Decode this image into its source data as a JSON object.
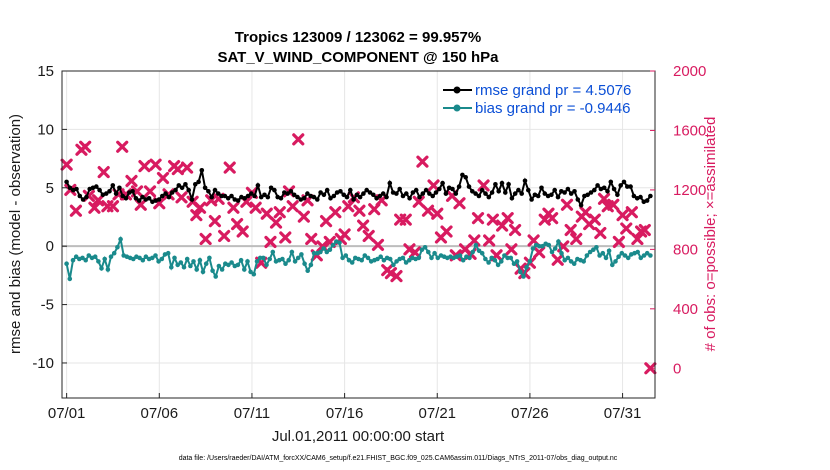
{
  "chart_data": {
    "type": "line",
    "title": [
      "Tropics 123009 / 123062 = 99.957%",
      "SAT_V_WIND_COMPONENT @ 150 hPa"
    ],
    "xlabel": "Jul.01,2011 00:00:00 start",
    "ylabel": "rmse and bias (model - observation)",
    "ylabel_right": "# of obs: o=possible; ×=assimilated",
    "x_tick_labels": [
      "07/01",
      "07/06",
      "07/11",
      "07/16",
      "07/21",
      "07/26",
      "07/31"
    ],
    "x_tick_days": [
      0,
      5,
      10,
      15,
      20,
      25,
      30
    ],
    "xlim": [
      -0.25,
      31.75
    ],
    "ylim": [
      -13,
      15
    ],
    "y_ticks": [
      -10,
      -5,
      0,
      5,
      10,
      15
    ],
    "ylim_right": [
      -200,
      2000
    ],
    "y_ticks_right": [
      0,
      400,
      800,
      1200,
      1600,
      2000
    ],
    "grid": true,
    "zero_line": true,
    "legend_position": "top-right",
    "series": [
      {
        "name": "rmse grand pr = 4.5076",
        "axis": "left",
        "color": "#000000",
        "values": [
          5.5,
          5.0,
          4.8,
          4.9,
          4.3,
          4.0,
          4.2,
          4.9,
          5.0,
          5.1,
          4.8,
          4.4,
          4.5,
          4.7,
          5.2,
          4.5,
          5.0,
          4.3,
          4.1,
          4.6,
          4.7,
          4.1,
          3.9,
          4.2,
          4.0,
          4.1,
          3.8,
          3.9,
          4.0,
          4.3,
          4.5,
          4.2,
          4.6,
          4.8,
          5.2,
          5.0,
          5.3,
          4.8,
          4.0,
          5.3,
          5.5,
          6.5,
          5.0,
          4.7,
          4.2,
          4.8,
          4.5,
          4.3,
          4.3,
          4.1,
          4.3,
          4.0,
          3.9,
          4.2,
          4.1,
          4.3,
          4.5,
          4.3,
          5.2,
          4.2,
          4.4,
          4.2,
          5.0,
          4.8,
          4.2,
          4.1,
          4.6,
          4.5,
          4.7,
          4.4,
          4.2,
          4.0,
          4.1,
          4.5,
          4.3,
          4.2,
          4.0,
          4.6,
          4.4,
          4.8,
          4.1,
          4.3,
          4.6,
          4.7,
          4.4,
          4.2,
          4.8,
          4.0,
          4.4,
          4.2,
          4.5,
          4.8,
          4.6,
          4.4,
          4.1,
          4.3,
          4.5,
          4.2,
          5.4,
          4.6,
          4.5,
          4.9,
          4.3,
          4.5,
          4.1,
          4.6,
          4.8,
          4.2,
          4.5,
          4.8,
          4.5,
          4.3,
          4.6,
          4.9,
          5.4,
          4.5,
          5.0,
          4.9,
          4.5,
          5.1,
          6.1,
          5.9,
          5.1,
          4.7,
          4.5,
          4.3,
          4.8,
          4.5,
          4.2,
          4.6,
          5.3,
          4.7,
          5.4,
          4.6,
          5.3,
          4.1,
          4.5,
          4.8,
          4.5,
          5.6,
          4.8,
          4.0,
          4.4,
          4.3,
          5.0,
          4.5,
          4.3,
          4.4,
          4.8,
          4.2,
          4.7,
          4.6,
          4.9,
          4.5,
          4.7,
          4.0,
          3.5,
          4.3,
          4.4,
          4.6,
          4.8,
          5.2,
          4.9,
          5.0,
          4.7,
          5.5,
          4.9,
          4.4,
          5.2,
          5.5,
          5.1,
          5.1,
          4.3,
          4.1,
          4.2,
          3.8,
          3.9,
          4.3
        ]
      },
      {
        "name": "bias grand pr = -0.9446",
        "axis": "left",
        "color": "#1a8a8c",
        "values": [
          -1.5,
          -2.8,
          -1.2,
          -0.9,
          -1.1,
          -1.0,
          -1.2,
          -0.8,
          -1.0,
          -0.9,
          -1.3,
          -1.9,
          -1.1,
          -2.0,
          -0.9,
          -0.6,
          -0.1,
          0.6,
          -0.8,
          -0.9,
          -1.0,
          -1.1,
          -0.9,
          -1.0,
          -1.2,
          -0.9,
          -1.1,
          -1.0,
          -0.8,
          -1.3,
          -1.1,
          -0.7,
          -0.6,
          -1.8,
          -1.0,
          -1.6,
          -1.4,
          -1.8,
          -1.1,
          -1.7,
          -1.3,
          -2.0,
          -1.2,
          -2.2,
          -1.5,
          -1.0,
          -2.1,
          -2.6,
          -1.7,
          -2.0,
          -1.5,
          -1.6,
          -1.4,
          -1.7,
          -1.6,
          -1.2,
          -2.0,
          -1.3,
          -2.2,
          -2.4,
          -1.3,
          -1.0,
          -1.0,
          -1.6,
          -1.1,
          -0.5,
          -1.3,
          -1.2,
          -1.1,
          -1.5,
          -1.2,
          -0.5,
          -1.3,
          -1.0,
          -0.7,
          -1.5,
          -2.1,
          -1.6,
          -0.6,
          -0.6,
          -0.5,
          -0.2,
          -0.5,
          -0.3,
          0.1,
          0.4,
          0.3,
          -1.0,
          -0.8,
          -1.2,
          -1.4,
          -1.0,
          -1.1,
          -1.2,
          -0.8,
          -1.0,
          -1.3,
          -1.2,
          -1.1,
          -0.9,
          -1.2,
          -1.0,
          -1.1,
          -1.6,
          -1.3,
          -1.1,
          -1.0,
          -1.4,
          -1.2,
          -1.0,
          -1.1,
          -1.0,
          -0.3,
          -0.1,
          -0.5,
          -1.0,
          -0.6,
          -1.0,
          -0.8,
          -0.9,
          -1.0,
          -0.9,
          -1.0,
          -0.9,
          -0.8,
          -1.2,
          -0.9,
          -1.0,
          -0.5,
          0.1,
          -0.4,
          -0.6,
          -1.1,
          -1.4,
          -1.0,
          -1.2,
          -1.6,
          -1.3,
          -0.8,
          -1.0,
          -1.0,
          -1.5,
          -1.3,
          -2.2,
          -2.6,
          -1.8,
          -1.3,
          -0.2,
          0.1,
          0.0,
          0.0,
          0.2,
          0.1,
          -0.5,
          -0.2,
          0.4,
          -0.6,
          -1.2,
          -1.0,
          -1.3,
          -1.5,
          -1.1,
          -1.2,
          -1.3,
          -0.8,
          -0.5,
          -0.3,
          -0.1,
          -0.8,
          -0.6,
          -1.0,
          -0.4,
          -1.6,
          -1.3,
          -0.9,
          -0.6,
          -0.8,
          -1.0,
          -0.7,
          -0.6,
          -0.5,
          -1.0,
          -0.8,
          -0.6,
          -0.8
        ]
      },
      {
        "name": "# of obs assimilated",
        "axis": "right",
        "marker": "x",
        "color": "#d81b60",
        "points": [
          [
            0.0,
            1370
          ],
          [
            0.2,
            1200
          ],
          [
            0.5,
            1060
          ],
          [
            0.8,
            1470
          ],
          [
            1.0,
            1490
          ],
          [
            1.2,
            1160
          ],
          [
            1.5,
            1080
          ],
          [
            1.7,
            1130
          ],
          [
            2.0,
            1320
          ],
          [
            2.2,
            1090
          ],
          [
            2.5,
            1090
          ],
          [
            2.8,
            1170
          ],
          [
            3.0,
            1490
          ],
          [
            3.2,
            1170
          ],
          [
            3.5,
            1260
          ],
          [
            3.8,
            1190
          ],
          [
            4.0,
            1100
          ],
          [
            4.2,
            1360
          ],
          [
            4.5,
            1190
          ],
          [
            4.8,
            1370
          ],
          [
            5.0,
            1110
          ],
          [
            5.2,
            1280
          ],
          [
            5.5,
            1170
          ],
          [
            5.8,
            1360
          ],
          [
            6.0,
            1340
          ],
          [
            6.2,
            1150
          ],
          [
            6.5,
            1350
          ],
          [
            6.8,
            1120
          ],
          [
            7.0,
            1030
          ],
          [
            7.2,
            1080
          ],
          [
            7.5,
            870
          ],
          [
            7.8,
            1130
          ],
          [
            8.0,
            990
          ],
          [
            8.2,
            1140
          ],
          [
            8.5,
            890
          ],
          [
            8.8,
            1350
          ],
          [
            9.0,
            1080
          ],
          [
            9.2,
            970
          ],
          [
            9.5,
            920
          ],
          [
            9.7,
            1120
          ],
          [
            10.0,
            1180
          ],
          [
            10.2,
            1080
          ],
          [
            10.5,
            710
          ],
          [
            10.8,
            1040
          ],
          [
            11.0,
            850
          ],
          [
            11.3,
            980
          ],
          [
            11.5,
            1050
          ],
          [
            11.8,
            880
          ],
          [
            12.0,
            1190
          ],
          [
            12.2,
            1090
          ],
          [
            12.5,
            1540
          ],
          [
            12.8,
            1020
          ],
          [
            13.0,
            1130
          ],
          [
            13.2,
            870
          ],
          [
            13.5,
            760
          ],
          [
            13.8,
            820
          ],
          [
            14.0,
            990
          ],
          [
            14.2,
            850
          ],
          [
            14.5,
            1050
          ],
          [
            14.8,
            870
          ],
          [
            15.0,
            900
          ],
          [
            15.2,
            1090
          ],
          [
            15.5,
            1150
          ],
          [
            15.8,
            1060
          ],
          [
            16.0,
            960
          ],
          [
            16.3,
            890
          ],
          [
            16.6,
            1070
          ],
          [
            16.8,
            830
          ],
          [
            17.0,
            1130
          ],
          [
            17.3,
            660
          ],
          [
            17.5,
            640
          ],
          [
            17.8,
            620
          ],
          [
            18.0,
            1000
          ],
          [
            18.3,
            1000
          ],
          [
            18.5,
            800
          ],
          [
            18.8,
            780
          ],
          [
            19.0,
            1120
          ],
          [
            19.2,
            1390
          ],
          [
            19.5,
            1060
          ],
          [
            19.8,
            1230
          ],
          [
            20.0,
            1040
          ],
          [
            20.2,
            880
          ],
          [
            20.5,
            920
          ],
          [
            20.8,
            1160
          ],
          [
            21.0,
            760
          ],
          [
            21.2,
            1110
          ],
          [
            21.5,
            800
          ],
          [
            21.8,
            770
          ],
          [
            22.0,
            860
          ],
          [
            22.2,
            1010
          ],
          [
            22.5,
            1230
          ],
          [
            22.8,
            860
          ],
          [
            23.0,
            1000
          ],
          [
            23.2,
            760
          ],
          [
            23.5,
            960
          ],
          [
            23.8,
            1010
          ],
          [
            24.0,
            800
          ],
          [
            24.2,
            930
          ],
          [
            24.5,
            670
          ],
          [
            24.7,
            640
          ],
          [
            25.0,
            710
          ],
          [
            25.2,
            860
          ],
          [
            25.5,
            780
          ],
          [
            25.8,
            1000
          ],
          [
            26.0,
            1040
          ],
          [
            26.2,
            1010
          ],
          [
            26.5,
            730
          ],
          [
            26.8,
            820
          ],
          [
            27.0,
            1100
          ],
          [
            27.2,
            930
          ],
          [
            27.5,
            870
          ],
          [
            27.8,
            1020
          ],
          [
            28.0,
            1050
          ],
          [
            28.2,
            970
          ],
          [
            28.5,
            1000
          ],
          [
            28.8,
            910
          ],
          [
            29.0,
            1140
          ],
          [
            29.2,
            1090
          ],
          [
            29.5,
            1100
          ],
          [
            29.8,
            850
          ],
          [
            30.0,
            1030
          ],
          [
            30.2,
            940
          ],
          [
            30.5,
            1050
          ],
          [
            30.8,
            870
          ],
          [
            31.0,
            920
          ],
          [
            31.2,
            930
          ],
          [
            31.5,
            0
          ]
        ]
      }
    ]
  },
  "footer": "data file: /Users/raeder/DAI/ATM_forcXX/CAM6_setup/f.e21.FHIST_BGC.f09_025.CAM6assim.011/Diags_NTrS_2011-07/obs_diag_output.nc"
}
